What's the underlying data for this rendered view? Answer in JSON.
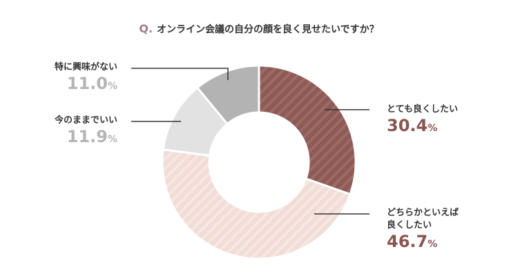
{
  "question": {
    "prefix": "Q.",
    "text": "オンライン会議の自分の顔を良く見せたいですか？"
  },
  "chart_data": {
    "type": "pie",
    "title": "Q. オンライン会議の自分の顔を良く見せたいですか？",
    "donut": true,
    "unit": "%",
    "slices": [
      {
        "label": "とても良くしたい",
        "value": 30.4,
        "color": "#8d5a55",
        "striped": true
      },
      {
        "label": "どちらかといえば良くしたい",
        "value": 46.7,
        "color": "#f1dcd6",
        "striped": true
      },
      {
        "label": "今のままでいい",
        "value": 11.9,
        "color": "#e2e2e2",
        "striped": false
      },
      {
        "label": "特に興味がない",
        "value": 11.0,
        "color": "#b3b3b3",
        "striped": false
      }
    ]
  },
  "labels": {
    "s0": {
      "line1": "とても良くしたい",
      "value": "30.4",
      "pct": "%"
    },
    "s1": {
      "line1": "どちらかといえば",
      "line2": "良くしたい",
      "value": "46.7",
      "pct": "%"
    },
    "s2": {
      "line1": "今のままでいい",
      "value": "11.9",
      "pct": "%"
    },
    "s3": {
      "line1": "特に興味がない",
      "value": "11.0",
      "pct": "%"
    }
  }
}
